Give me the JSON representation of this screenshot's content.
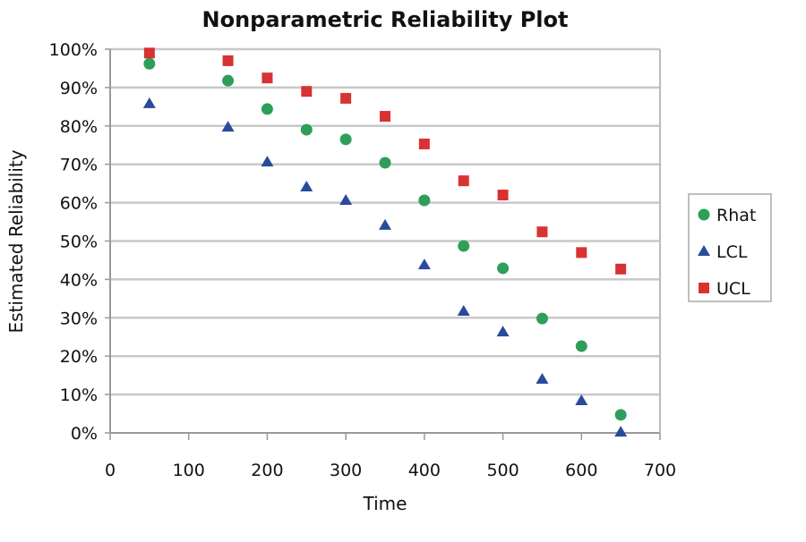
{
  "chart_data": {
    "type": "scatter",
    "title": "Nonparametric Reliability Plot",
    "xlabel": "Time",
    "ylabel": "Estimated Reliability",
    "xlim": [
      0,
      700
    ],
    "ylim": [
      0,
      100
    ],
    "x_ticks": [
      0,
      100,
      200,
      300,
      400,
      500,
      600,
      700
    ],
    "x_tick_labels": [
      "0",
      "100",
      "200",
      "300",
      "400",
      "500",
      "600",
      "700"
    ],
    "y_ticks": [
      0,
      10,
      20,
      30,
      40,
      50,
      60,
      70,
      80,
      90,
      100
    ],
    "y_tick_labels": [
      "0%",
      "10%",
      "20%",
      "30%",
      "40%",
      "50%",
      "60%",
      "70%",
      "80%",
      "90%",
      "100%"
    ],
    "grid": "horizontal",
    "legend_position": "right",
    "x": [
      50,
      150,
      200,
      250,
      300,
      350,
      400,
      450,
      500,
      550,
      600,
      650
    ],
    "series": [
      {
        "name": "Rhat",
        "marker": "circle",
        "color": "#2e9e5b",
        "values": [
          96.2,
          91.8,
          84.4,
          79.0,
          76.5,
          70.4,
          60.6,
          48.7,
          42.9,
          29.8,
          22.6,
          4.7
        ]
      },
      {
        "name": "LCL",
        "marker": "triangle",
        "color": "#2a4a9c",
        "values": [
          85.8,
          79.7,
          70.6,
          64.1,
          60.6,
          54.1,
          43.8,
          31.7,
          26.3,
          14.0,
          8.4,
          0.2
        ]
      },
      {
        "name": "UCL",
        "marker": "square",
        "color": "#d83232",
        "values": [
          99.0,
          97.0,
          92.5,
          89.0,
          87.2,
          82.5,
          75.3,
          65.7,
          62.0,
          52.4,
          47.0,
          42.7
        ]
      }
    ]
  }
}
